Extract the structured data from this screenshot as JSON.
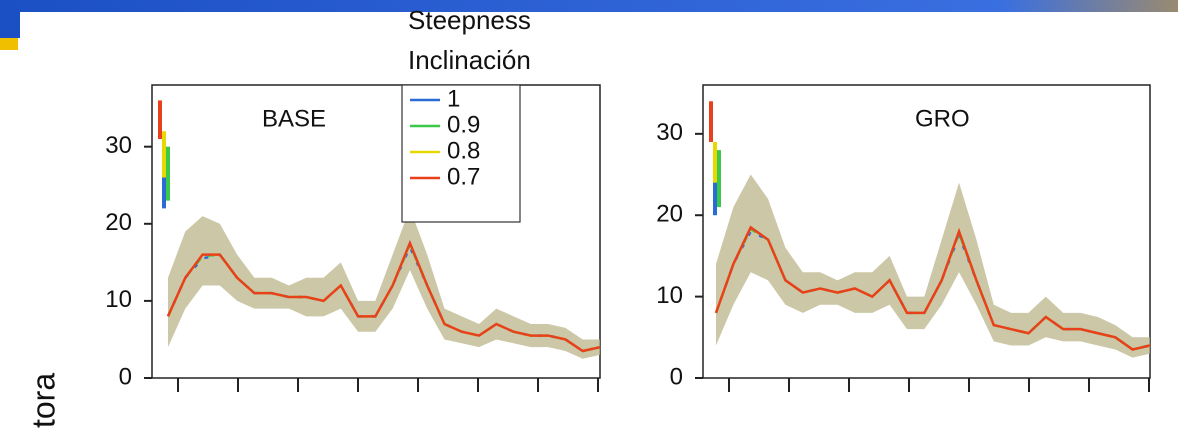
{
  "side_label": "tora",
  "chart_data": [
    {
      "type": "line",
      "title": "BASE",
      "legend": true,
      "legend_title": [
        "Steepness",
        "Inclinación"
      ],
      "ylim": [
        0,
        38
      ],
      "yticks": [
        0,
        10,
        20,
        30
      ],
      "band_color": "#b9b48a",
      "upper": [
        13,
        19,
        21,
        20,
        16,
        13,
        13,
        12,
        13,
        13,
        15,
        10,
        10,
        16,
        22,
        16,
        9,
        8,
        7,
        9,
        8,
        7,
        7,
        6.5,
        5,
        5
      ],
      "lower": [
        4,
        9,
        12,
        12,
        10,
        9,
        9,
        9,
        8,
        8,
        9,
        6,
        6,
        9,
        14,
        9,
        5,
        4.5,
        4,
        5,
        4.5,
        4,
        4,
        3.5,
        2.5,
        3
      ],
      "series": [
        {
          "name": "1",
          "color": "#2a6bd6",
          "range": [
            22,
            28
          ],
          "values": [
            8,
            13,
            15.5,
            16,
            13,
            11,
            11,
            10.5,
            10.5,
            10,
            12,
            8,
            8,
            12,
            17,
            12,
            7,
            6,
            5.5,
            7,
            6,
            5.5,
            5.5,
            5,
            3.5,
            4
          ]
        },
        {
          "name": "0.9",
          "color": "#3cc84a",
          "range": [
            23,
            30
          ],
          "values": [
            8,
            13,
            15.8,
            16,
            13,
            11,
            11,
            10.5,
            10.5,
            10,
            12,
            8,
            8,
            12,
            17.3,
            12,
            7,
            6,
            5.5,
            7,
            6,
            5.5,
            5.5,
            5,
            3.5,
            4
          ]
        },
        {
          "name": "0.8",
          "color": "#e8d800",
          "range": [
            26,
            32
          ],
          "values": [
            8,
            13,
            16,
            16,
            13,
            11,
            11,
            10.5,
            10.5,
            10,
            12,
            8,
            8,
            12,
            17.5,
            12,
            7,
            6,
            5.5,
            7,
            6,
            5.5,
            5.5,
            5,
            3.5,
            4
          ]
        },
        {
          "name": "0.7",
          "color": "#e8401c",
          "range": [
            31,
            36
          ],
          "values": [
            8,
            13,
            16,
            16,
            13,
            11,
            11,
            10.5,
            10.5,
            10,
            12,
            8,
            8,
            12,
            17.5,
            12,
            7,
            6,
            5.5,
            7,
            6,
            5.5,
            5.5,
            5,
            3.5,
            4
          ]
        }
      ]
    },
    {
      "type": "line",
      "title": "GRO",
      "legend": false,
      "ylim": [
        0,
        36
      ],
      "yticks": [
        0,
        10,
        20,
        30
      ],
      "band_color": "#b9b48a",
      "upper": [
        14,
        21,
        25,
        22,
        16,
        13,
        13,
        12,
        13,
        13,
        15,
        10,
        10,
        17,
        24,
        17,
        9,
        8,
        8,
        10,
        8,
        8,
        7.5,
        6.5,
        5,
        5
      ],
      "lower": [
        4,
        9,
        13,
        12,
        9,
        8,
        9,
        9,
        8,
        8,
        9,
        6,
        6,
        9,
        13,
        9,
        4.5,
        4,
        4,
        5,
        4.5,
        4.5,
        4,
        3.5,
        2.5,
        3
      ],
      "series": [
        {
          "name": "1",
          "color": "#2a6bd6",
          "range": [
            20,
            27
          ],
          "values": [
            8,
            14,
            18,
            17,
            12,
            10.5,
            11,
            10.5,
            11,
            10,
            12,
            8,
            8,
            12,
            17.5,
            12,
            6.5,
            6,
            5.5,
            7.5,
            6,
            6,
            5.5,
            5,
            3.5,
            4
          ]
        },
        {
          "name": "0.9",
          "color": "#3cc84a",
          "range": [
            21,
            28
          ],
          "values": [
            8,
            14,
            18.3,
            17,
            12,
            10.5,
            11,
            10.5,
            11,
            10,
            12,
            8,
            8,
            12,
            17.8,
            12,
            6.5,
            6,
            5.5,
            7.5,
            6,
            6,
            5.5,
            5,
            3.5,
            4
          ]
        },
        {
          "name": "0.8",
          "color": "#e8d800",
          "range": [
            24,
            29
          ],
          "values": [
            8,
            14,
            18.5,
            17,
            12,
            10.5,
            11,
            10.5,
            11,
            10,
            12,
            8,
            8,
            12,
            18,
            12,
            6.5,
            6,
            5.5,
            7.5,
            6,
            6,
            5.5,
            5,
            3.5,
            4
          ]
        },
        {
          "name": "0.7",
          "color": "#e8401c",
          "range": [
            29,
            34
          ],
          "values": [
            8,
            14,
            18.5,
            17,
            12,
            10.5,
            11,
            10.5,
            11,
            10,
            12,
            8,
            8,
            12,
            18,
            12,
            6.5,
            6,
            5.5,
            7.5,
            6,
            6,
            5.5,
            5,
            3.5,
            4
          ]
        }
      ]
    }
  ]
}
